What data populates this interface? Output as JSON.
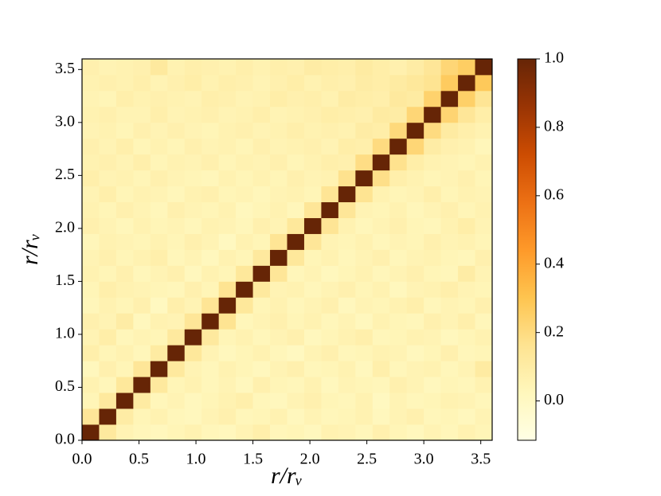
{
  "chart_data": {
    "type": "heatmap",
    "xlabel": "r/rᵥ",
    "ylabel": "r/rᵥ",
    "xlim": [
      0,
      3.6
    ],
    "ylim": [
      0,
      3.6
    ],
    "xticks": [
      {
        "value": 0,
        "label": "0.0"
      },
      0.5,
      {
        "value": 1,
        "label": "1.0"
      },
      1.5,
      {
        "value": 2,
        "label": "2.0"
      },
      2.5,
      {
        "value": 3,
        "label": "3.0"
      },
      3.5
    ],
    "yticks": [
      {
        "value": 0,
        "label": "0.0"
      },
      0.5,
      {
        "value": 1,
        "label": "1.0"
      },
      1.5,
      {
        "value": 2,
        "label": "2.0"
      },
      2.5,
      {
        "value": 3,
        "label": "3.0"
      },
      3.5
    ],
    "colormap": "YlOrBr",
    "clim": [
      -0.115,
      1
    ],
    "cticks": [
      {
        "value": 0,
        "label": "0.0"
      },
      0.2,
      0.4,
      0.6,
      0.8,
      {
        "value": 1,
        "label": "1.0"
      }
    ],
    "z": [
      [
        1,
        0.12,
        0.05,
        0.03,
        0.02,
        0.04,
        0.06,
        0.03,
        0.02,
        0.05,
        0.08,
        0.03,
        0.04,
        0.02,
        0.06,
        0.05,
        0.03,
        0.07,
        0.04,
        0.02,
        0.05,
        0.03,
        0.06,
        0.04
      ],
      [
        0.14,
        1,
        0.1,
        0.04,
        0.06,
        0.03,
        0.02,
        0.05,
        0.07,
        0.03,
        0.04,
        0.06,
        0.02,
        0.05,
        0.03,
        0.04,
        0.06,
        0.02,
        0.05,
        0.07,
        0.03,
        0.04,
        0.02,
        0.05
      ],
      [
        0.04,
        0.12,
        1,
        0.11,
        0.03,
        0.05,
        0.02,
        0.04,
        0.06,
        0.08,
        0.03,
        0.02,
        0.05,
        0.07,
        0.04,
        0.03,
        0.06,
        0.01,
        0.05,
        0.03,
        0.04,
        0.06,
        0.05,
        0.03
      ],
      [
        0.06,
        0.03,
        0.13,
        1,
        0.12,
        0.04,
        0.06,
        0.03,
        0.05,
        0.02,
        0.07,
        0.04,
        0.03,
        0.06,
        0.02,
        0.05,
        0.04,
        0.03,
        0.07,
        0.05,
        0.02,
        0.04,
        0.03,
        0.06
      ],
      [
        0.02,
        0.07,
        0.04,
        0.14,
        1,
        0.12,
        0.05,
        0.03,
        0.06,
        0.04,
        0.02,
        0.05,
        0.07,
        0.03,
        0.04,
        0.06,
        0.02,
        0.08,
        0.03,
        0.05,
        0.06,
        0.03,
        0.05,
        0.11
      ],
      [
        0.08,
        0.04,
        0.06,
        0.03,
        0.11,
        1,
        0.13,
        0.05,
        0.02,
        0.04,
        0.06,
        0.03,
        0.01,
        0.05,
        0.07,
        0.03,
        0.04,
        0.06,
        0.05,
        0.02,
        0.04,
        0.07,
        0.03,
        0.04
      ],
      [
        0.05,
        0.09,
        0.03,
        0.05,
        0.04,
        0.12,
        1,
        0.12,
        0.04,
        0.06,
        0.03,
        0.05,
        0.07,
        0.02,
        0.04,
        0.06,
        0.08,
        0.03,
        0.04,
        0.06,
        0.05,
        0.02,
        0.04,
        0.06
      ],
      [
        0.07,
        0.05,
        0.1,
        0.02,
        0.06,
        0.05,
        0.14,
        1,
        0.16,
        0.03,
        0.05,
        0.07,
        0.04,
        0.06,
        0.03,
        0.05,
        0.02,
        0.06,
        0.04,
        0.03,
        0.07,
        0.05,
        0.08,
        0.03
      ],
      [
        0.03,
        0.06,
        0.04,
        0.07,
        0.01,
        0.08,
        0.05,
        0.15,
        1,
        0.13,
        0.04,
        0.06,
        0.03,
        0.05,
        0.07,
        0.02,
        0.05,
        0.04,
        0.06,
        0.08,
        0.03,
        0.05,
        0.04,
        0.07
      ],
      [
        0.04,
        0.08,
        0.06,
        0.05,
        0.04,
        0.03,
        0.07,
        0.04,
        0.16,
        1,
        0.12,
        0.05,
        0.06,
        0.03,
        0.05,
        0.07,
        0.04,
        0.06,
        0.02,
        0.05,
        0.06,
        0.08,
        0.05,
        0.04
      ],
      [
        0.06,
        0.04,
        0.07,
        0.03,
        0.05,
        0.07,
        0.02,
        0.06,
        0.04,
        0.13,
        1,
        0.14,
        0.03,
        0.05,
        0.02,
        0.04,
        0.06,
        0.03,
        0.05,
        0.07,
        0.04,
        0.03,
        0.1,
        0.05
      ],
      [
        0.05,
        0.07,
        0.04,
        0.06,
        0.08,
        0.03,
        0.05,
        0.02,
        0.06,
        0.04,
        0.12,
        1,
        0.13,
        0.04,
        0.06,
        0.03,
        0.05,
        0.07,
        0.03,
        0.05,
        0.06,
        0.04,
        0.03,
        0.07
      ],
      [
        0.03,
        0.06,
        0.05,
        0.04,
        0.06,
        0.04,
        0.07,
        0.05,
        0.01,
        0.06,
        0.04,
        0.15,
        1,
        0.14,
        0.05,
        0.04,
        0.06,
        0.03,
        0.05,
        0.04,
        0.07,
        0.05,
        0.06,
        0.04
      ],
      [
        0.07,
        0.05,
        0.03,
        0.06,
        0.04,
        0.05,
        0.03,
        0.06,
        0.05,
        0.03,
        0.07,
        0.05,
        0.13,
        1,
        0.15,
        0.06,
        0.03,
        0.05,
        0.07,
        0.04,
        0.03,
        0.06,
        0.09,
        0.05
      ],
      [
        0.06,
        0.04,
        0.07,
        0.05,
        0.03,
        0.07,
        0.05,
        0.04,
        0.06,
        0.02,
        0.04,
        0.06,
        0.03,
        0.14,
        1,
        0.14,
        0.05,
        0.04,
        0.06,
        0.03,
        0.05,
        0.07,
        0.04,
        0.06
      ],
      [
        0.05,
        0.08,
        0.04,
        0.06,
        0.05,
        0.03,
        0.06,
        0.07,
        0.04,
        0.05,
        0.03,
        0.05,
        0.06,
        0.04,
        0.15,
        1,
        0.16,
        0.06,
        0.04,
        0.05,
        0.08,
        0.04,
        0.06,
        0.05
      ],
      [
        0.08,
        0.05,
        0.06,
        0.04,
        0.07,
        0.05,
        0.04,
        0.03,
        0.06,
        0.04,
        0.06,
        0.04,
        0.07,
        0.05,
        0.06,
        0.17,
        1,
        0.18,
        0.08,
        0.06,
        0.04,
        0.05,
        0.07,
        0.04
      ],
      [
        0.06,
        0.07,
        0.05,
        0.08,
        0.04,
        0.06,
        0.05,
        0.07,
        0.04,
        0.06,
        0.05,
        0.07,
        0.04,
        0.06,
        0.08,
        0.07,
        0.19,
        1,
        0.17,
        0.09,
        0.06,
        0.05,
        0.04,
        0.06
      ],
      [
        0.07,
        0.05,
        0.08,
        0.04,
        0.06,
        0.04,
        0.07,
        0.05,
        0.06,
        0.04,
        0.07,
        0.05,
        0.06,
        0.07,
        0.05,
        0.09,
        0.08,
        0.2,
        1,
        0.22,
        0.1,
        0.07,
        0.06,
        0.03
      ],
      [
        0.05,
        0.06,
        0.04,
        0.07,
        0.05,
        0.07,
        0.05,
        0.04,
        0.06,
        0.07,
        0.05,
        0.06,
        0.08,
        0.06,
        0.07,
        0.06,
        0.1,
        0.09,
        0.21,
        1,
        0.2,
        0.11,
        0.08,
        0.06
      ],
      [
        0.06,
        0.07,
        0.05,
        0.05,
        0.08,
        0.05,
        0.06,
        0.07,
        0.05,
        0.06,
        0.08,
        0.05,
        0.06,
        0.07,
        0.09,
        0.08,
        0.07,
        0.11,
        0.1,
        0.22,
        1,
        0.23,
        0.14,
        0.09
      ],
      [
        0.05,
        0.04,
        0.08,
        0.06,
        0.07,
        0.06,
        0.05,
        0.08,
        0.07,
        0.05,
        0.06,
        0.09,
        0.07,
        0.08,
        0.06,
        0.1,
        0.09,
        0.08,
        0.12,
        0.11,
        0.24,
        1,
        0.25,
        0.15
      ],
      [
        0.06,
        0.07,
        0.06,
        0.08,
        0.05,
        0.07,
        0.09,
        0.06,
        0.08,
        0.07,
        0.05,
        0.07,
        0.09,
        0.06,
        0.08,
        0.07,
        0.1,
        0.09,
        0.11,
        0.13,
        0.16,
        0.27,
        1,
        0.28
      ],
      [
        0.07,
        0.05,
        0.06,
        0.07,
        0.12,
        0.06,
        0.08,
        0.07,
        0.06,
        0.08,
        0.06,
        0.08,
        0.07,
        0.1,
        0.09,
        0.08,
        0.11,
        0.09,
        0.07,
        0.1,
        0.14,
        0.22,
        0.26,
        1
      ]
    ]
  }
}
